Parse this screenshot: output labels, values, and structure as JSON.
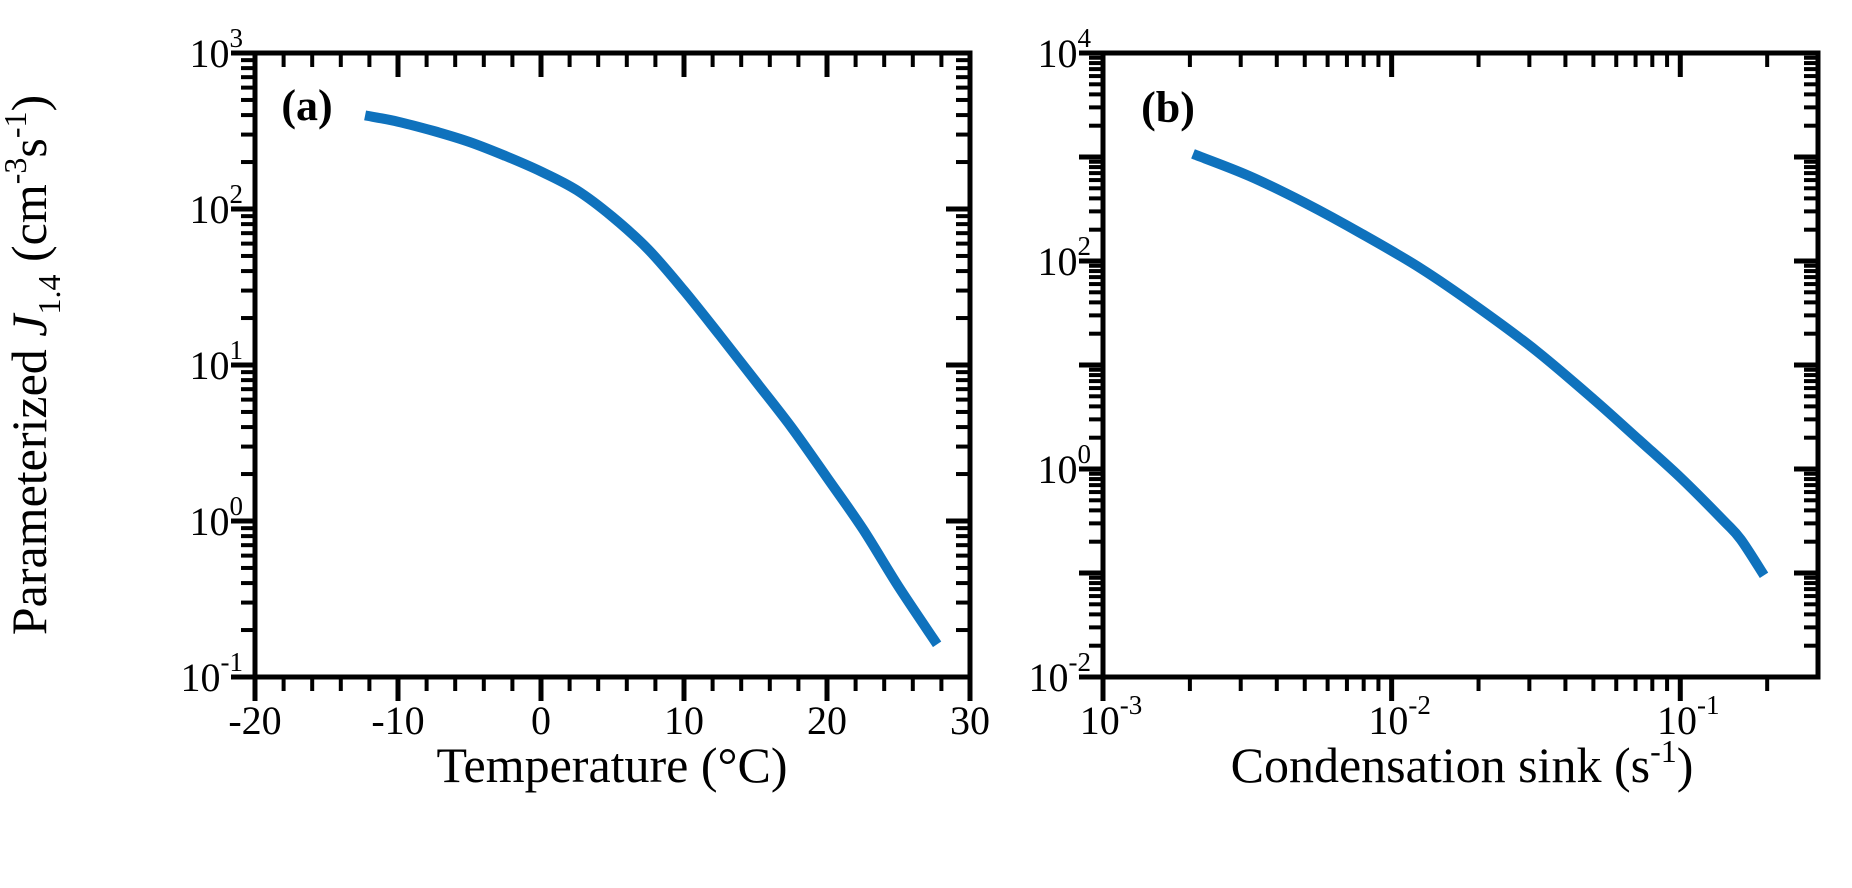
{
  "figure": {
    "background": "#ffffff",
    "axis_color": "#000000",
    "curve_color": "#0f72bd",
    "panel_labels": [
      "(a)",
      "(b)"
    ]
  },
  "chart_data": [
    {
      "type": "line",
      "panel_label": "(a)",
      "title": "",
      "xlabel_segments": [
        {
          "t": "Temperature (°C)"
        }
      ],
      "ylabel_segments": [
        {
          "t": "Parameterized "
        },
        {
          "t": "J",
          "italic": true
        },
        {
          "t": "1.4",
          "sub": true
        },
        {
          "t": " (cm",
          "italic": false
        },
        {
          "t": "-3",
          "sup": true
        },
        {
          "t": "s"
        },
        {
          "t": "-1",
          "sup": true
        },
        {
          "t": ")"
        }
      ],
      "x_axis": {
        "scale": "linear",
        "min": -20,
        "max": 30,
        "major_ticks": [
          -20,
          -10,
          0,
          10,
          20,
          30
        ],
        "tick_labels": [
          "-20",
          "-10",
          "0",
          "10",
          "20",
          "30"
        ],
        "minor_step": 2,
        "grid": false
      },
      "y_axis": {
        "scale": "log",
        "min_exp": -1,
        "max_exp": 3,
        "labeled_exps": [
          3,
          2,
          1,
          0,
          -1
        ],
        "tick_label_format": "pow10",
        "grid": false
      },
      "xlim": [
        -20,
        30
      ],
      "ylim": [
        0.1,
        1000
      ],
      "series": [
        {
          "name": "parameterized-J1.4-vs-temperature",
          "color": "#0f72bd",
          "points": [
            [
              -12.3,
              398
            ],
            [
              -10,
              363
            ],
            [
              -7.5,
              316
            ],
            [
              -5,
              269
            ],
            [
              -2.5,
              219
            ],
            [
              0,
              174
            ],
            [
              2.5,
              132
            ],
            [
              5,
              89
            ],
            [
              7.5,
              55
            ],
            [
              10,
              30
            ],
            [
              12.5,
              15.5
            ],
            [
              15,
              7.9
            ],
            [
              17.5,
              4.0
            ],
            [
              20,
              1.9
            ],
            [
              22.5,
              0.89
            ],
            [
              25,
              0.38
            ],
            [
              27.7,
              0.162
            ]
          ]
        }
      ]
    },
    {
      "type": "line",
      "panel_label": "(b)",
      "title": "",
      "xlabel_segments": [
        {
          "t": "Condensation sink (s"
        },
        {
          "t": "-1",
          "sup": true
        },
        {
          "t": ")"
        }
      ],
      "ylabel_segments": [],
      "x_axis": {
        "scale": "log",
        "min_exp": -3,
        "max_exp": -0.5229,
        "labeled_exps": [
          -3,
          -2,
          -1
        ],
        "tick_label_format": "pow10",
        "grid": false
      },
      "y_axis": {
        "scale": "log",
        "min_exp": -2,
        "max_exp": 4,
        "labeled_exps": [
          4,
          2,
          0,
          -2
        ],
        "tick_label_format": "pow10",
        "grid": false
      },
      "xlim": [
        0.001,
        0.3
      ],
      "ylim": [
        0.01,
        10000
      ],
      "series": [
        {
          "name": "parameterized-J1.4-vs-condensation-sink",
          "color": "#0f72bd",
          "points": [
            [
              0.00205,
              1070
            ],
            [
              0.0032,
              660
            ],
            [
              0.005,
              363
            ],
            [
              0.0079,
              182
            ],
            [
              0.0126,
              85
            ],
            [
              0.02,
              35.5
            ],
            [
              0.0316,
              13.8
            ],
            [
              0.05,
              4.7
            ],
            [
              0.072,
              1.9
            ],
            [
              0.1,
              0.83
            ],
            [
              0.141,
              0.32
            ],
            [
              0.162,
              0.21
            ],
            [
              0.195,
              0.095
            ]
          ]
        }
      ]
    }
  ]
}
